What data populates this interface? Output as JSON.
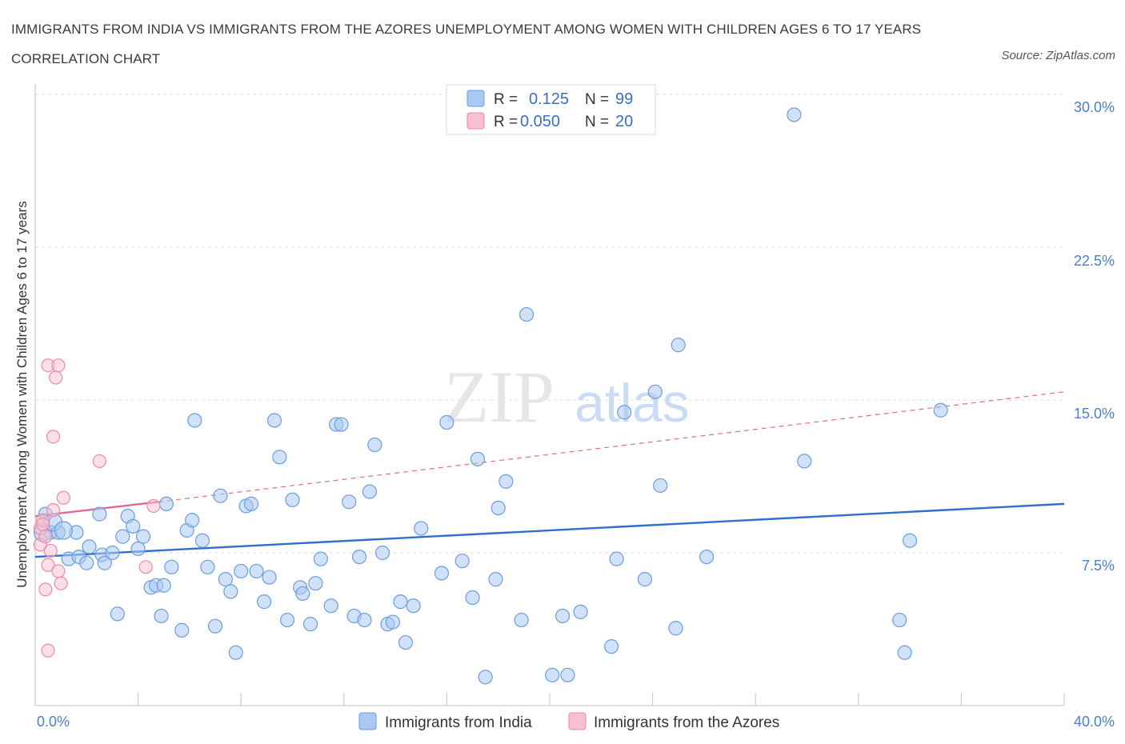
{
  "title": "IMMIGRANTS FROM INDIA VS IMMIGRANTS FROM THE AZORES UNEMPLOYMENT AMONG WOMEN WITH CHILDREN AGES 6 TO 17 YEARS CORRELATION CHART",
  "source": "Source: ZipAtlas.com",
  "watermark": {
    "zip": "ZIP",
    "atlas": "atlas"
  },
  "colors": {
    "india_fill": "#a9c8f2",
    "india_stroke": "#6b9de0",
    "india_line": "#2f6fcc",
    "azores_fill": "#f7bfd0",
    "azores_stroke": "#e98aa8",
    "azores_line": "#e06a92",
    "grid": "#d9dde3",
    "tick": "#4a7fcf"
  },
  "legend": {
    "india": {
      "r_label": "R =",
      "r_value": "0.125",
      "n_label": "N =",
      "n_value": "99"
    },
    "azores": {
      "r_label": "R =",
      "r_value": "0.050",
      "n_label": "N =",
      "n_value": "20"
    }
  },
  "chart_data": {
    "type": "scatter",
    "title": "IMMIGRANTS FROM INDIA VS IMMIGRANTS FROM THE AZORES UNEMPLOYMENT AMONG WOMEN WITH CHILDREN AGES 6 TO 17 YEARS CORRELATION CHART",
    "xlabel": "",
    "ylabel": "Unemployment Among Women with Children Ages 6 to 17 years",
    "xlim": [
      0,
      40
    ],
    "ylim": [
      0,
      30
    ],
    "x_ticks_labels": [
      "0.0%",
      "40.0%"
    ],
    "y_ticks": [
      7.5,
      15.0,
      22.5,
      30.0
    ],
    "y_ticks_labels": [
      "7.5%",
      "15.0%",
      "22.5%",
      "30.0%"
    ],
    "grid": true,
    "legend_position": "top-center",
    "series": [
      {
        "name": "Immigrants from India",
        "r": 0.125,
        "n": 99,
        "trend": {
          "x": [
            0,
            40
          ],
          "y": [
            7.3,
            9.9
          ]
        },
        "points": [
          [
            0.4,
            9.4
          ],
          [
            0.6,
            8.5
          ],
          [
            0.9,
            8.5
          ],
          [
            1.3,
            7.2
          ],
          [
            1.7,
            7.3
          ],
          [
            2.0,
            7.0
          ],
          [
            1.6,
            8.5
          ],
          [
            2.1,
            7.8
          ],
          [
            2.5,
            9.4
          ],
          [
            2.6,
            7.4
          ],
          [
            2.7,
            7.0
          ],
          [
            3.0,
            7.5
          ],
          [
            3.2,
            4.5
          ],
          [
            3.4,
            8.3
          ],
          [
            3.6,
            9.3
          ],
          [
            3.8,
            8.8
          ],
          [
            4.0,
            7.7
          ],
          [
            4.2,
            8.3
          ],
          [
            4.5,
            5.8
          ],
          [
            4.7,
            5.9
          ],
          [
            4.9,
            4.4
          ],
          [
            5.1,
            9.9
          ],
          [
            5.3,
            6.8
          ],
          [
            5.7,
            3.7
          ],
          [
            5.9,
            8.6
          ],
          [
            6.1,
            9.1
          ],
          [
            6.2,
            14.0
          ],
          [
            6.5,
            8.1
          ],
          [
            6.7,
            6.8
          ],
          [
            7.0,
            3.9
          ],
          [
            7.2,
            10.3
          ],
          [
            7.4,
            6.2
          ],
          [
            7.6,
            5.6
          ],
          [
            7.8,
            2.6
          ],
          [
            8.0,
            6.6
          ],
          [
            8.2,
            9.8
          ],
          [
            8.4,
            9.9
          ],
          [
            8.6,
            6.6
          ],
          [
            8.9,
            5.1
          ],
          [
            9.1,
            6.3
          ],
          [
            9.3,
            14.0
          ],
          [
            9.5,
            12.2
          ],
          [
            9.8,
            4.2
          ],
          [
            10.0,
            10.1
          ],
          [
            10.3,
            5.8
          ],
          [
            10.4,
            5.5
          ],
          [
            10.7,
            4.0
          ],
          [
            10.9,
            6.0
          ],
          [
            11.1,
            7.2
          ],
          [
            11.5,
            4.9
          ],
          [
            11.7,
            13.8
          ],
          [
            11.9,
            13.8
          ],
          [
            12.2,
            10.0
          ],
          [
            12.4,
            4.4
          ],
          [
            12.6,
            7.3
          ],
          [
            12.8,
            4.2
          ],
          [
            13.0,
            10.5
          ],
          [
            13.2,
            12.8
          ],
          [
            13.5,
            7.5
          ],
          [
            13.7,
            4.0
          ],
          [
            13.9,
            4.1
          ],
          [
            14.2,
            5.1
          ],
          [
            14.4,
            3.1
          ],
          [
            14.7,
            4.9
          ],
          [
            15.0,
            8.7
          ],
          [
            15.8,
            6.5
          ],
          [
            16.0,
            13.9
          ],
          [
            16.6,
            7.1
          ],
          [
            17.0,
            5.3
          ],
          [
            17.2,
            12.1
          ],
          [
            17.5,
            1.4
          ],
          [
            17.9,
            6.2
          ],
          [
            18.0,
            9.7
          ],
          [
            18.3,
            11.0
          ],
          [
            18.9,
            4.2
          ],
          [
            19.1,
            19.2
          ],
          [
            20.1,
            1.5
          ],
          [
            20.5,
            4.4
          ],
          [
            20.7,
            1.5
          ],
          [
            21.2,
            4.6
          ],
          [
            22.4,
            2.9
          ],
          [
            22.6,
            7.2
          ],
          [
            22.9,
            14.4
          ],
          [
            23.7,
            6.2
          ],
          [
            24.1,
            15.4
          ],
          [
            24.3,
            10.8
          ],
          [
            24.9,
            3.8
          ],
          [
            25.0,
            17.7
          ],
          [
            26.1,
            7.3
          ],
          [
            29.5,
            29.0
          ],
          [
            29.9,
            12.0
          ],
          [
            33.6,
            4.2
          ],
          [
            33.8,
            2.6
          ],
          [
            34.0,
            8.1
          ],
          [
            35.2,
            14.5
          ],
          [
            0.3,
            8.5
          ],
          [
            0.7,
            9.0
          ],
          [
            1.1,
            8.6
          ],
          [
            5.0,
            5.9
          ]
        ]
      },
      {
        "name": "Immigrants from the Azores",
        "r": 0.05,
        "n": 20,
        "trend": {
          "x": [
            0,
            4.8
          ],
          "y": [
            9.3,
            10.0
          ],
          "dashed_extension": {
            "x": [
              4.8,
              40
            ],
            "y": [
              10.0,
              15.4
            ]
          }
        },
        "points": [
          [
            0.2,
            8.7
          ],
          [
            0.2,
            7.9
          ],
          [
            0.3,
            9.1
          ],
          [
            0.4,
            8.3
          ],
          [
            0.5,
            6.9
          ],
          [
            0.6,
            7.6
          ],
          [
            0.7,
            9.6
          ],
          [
            0.9,
            6.6
          ],
          [
            1.0,
            6.0
          ],
          [
            0.4,
            5.7
          ],
          [
            0.5,
            2.7
          ],
          [
            0.5,
            16.7
          ],
          [
            0.8,
            16.1
          ],
          [
            0.9,
            16.7
          ],
          [
            0.7,
            13.2
          ],
          [
            1.1,
            10.2
          ],
          [
            2.5,
            12.0
          ],
          [
            4.3,
            6.8
          ],
          [
            4.6,
            9.8
          ],
          [
            0.3,
            8.9
          ]
        ]
      }
    ]
  },
  "bottom_legend": {
    "india": "Immigrants from India",
    "azores": "Immigrants from the Azores"
  }
}
